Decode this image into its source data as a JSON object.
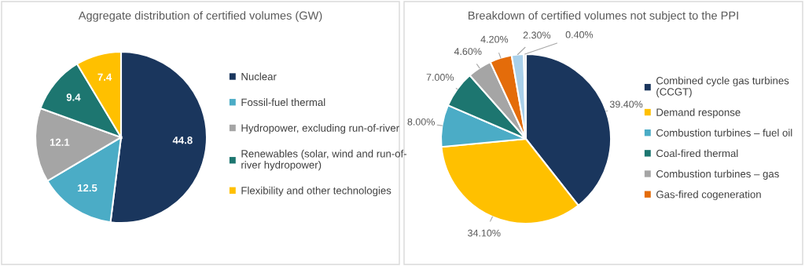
{
  "chart_data": [
    {
      "type": "pie",
      "title": "Aggregate distribution of certified volumes (GW)",
      "categories": [
        "Nuclear",
        "Fossil-fuel thermal",
        "Hydropower, excluding run-of-river",
        "Renewables (solar, wind and run-of-river hydropower)",
        "Flexibility and other technologies"
      ],
      "values": [
        44.8,
        12.5,
        12.1,
        9.4,
        7.4
      ],
      "colors": [
        "#1a365d",
        "#4bacc6",
        "#a5a5a5",
        "#1d7670",
        "#ffc000"
      ],
      "data_labels": true,
      "legend": "right"
    },
    {
      "type": "pie",
      "title": "Breakdown of certified volumes not subject to the PPI",
      "categories": [
        "Combined cycle gas turbines (CCGT)",
        "Demand response",
        "Combustion turbines – fuel oil",
        "Coal-fired thermal",
        "Combustion turbines – gas",
        "Gas-fired cogeneration",
        null,
        null
      ],
      "values": [
        39.4,
        34.1,
        8.0,
        7.0,
        4.6,
        4.2,
        2.3,
        0.4
      ],
      "colors": [
        "#1a365d",
        "#ffc000",
        "#4bacc6",
        "#1d7670",
        "#a5a5a5",
        "#e46c0a",
        "#a9d0ea",
        "#d9d9d9"
      ],
      "value_labels": [
        "39.40%",
        "34.10%",
        "8.00%",
        "7.00%",
        "4.60%",
        "4.20%",
        "2.30%",
        "0.40%"
      ],
      "legend": "right"
    }
  ]
}
